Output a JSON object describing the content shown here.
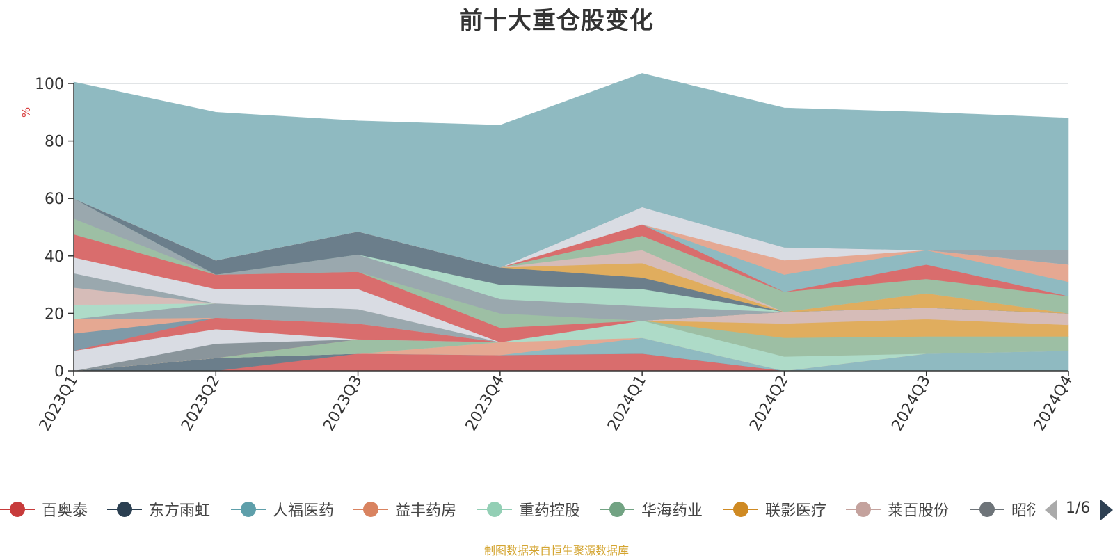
{
  "chart_data": {
    "type": "area",
    "title": "前十大重仓股变化",
    "ylabel": "%",
    "ylim": [
      0,
      100
    ],
    "y_ticks": [
      0,
      20,
      40,
      60,
      80,
      100
    ],
    "grid": true,
    "categories": [
      "2023Q1",
      "2023Q2",
      "2023Q3",
      "2023Q4",
      "2024Q1",
      "2024Q2",
      "2024Q3",
      "2024Q4"
    ],
    "series": [
      {
        "name": "百奥泰",
        "color": "#d96d6d",
        "values": [
          0,
          0,
          6,
          5.5,
          6,
          0,
          0,
          0
        ]
      },
      {
        "name": "东方雨虹",
        "color": "#6b7e8b",
        "values": [
          0,
          4.5,
          0,
          0,
          0,
          0,
          0,
          0
        ]
      },
      {
        "name": "人福医药",
        "color": "#8fbac1",
        "values": [
          0,
          0,
          0,
          0,
          5.5,
          0,
          6,
          7
        ]
      },
      {
        "name": "益丰药房",
        "color": "#e5a892",
        "values": [
          0,
          0,
          0,
          4.5,
          0,
          0,
          0,
          0
        ]
      },
      {
        "name": "重药控股",
        "color": "#aedbc8",
        "values": [
          0,
          0,
          0,
          0,
          6,
          5,
          0,
          0
        ]
      },
      {
        "name": "华海药业",
        "color": "#9dbfa4",
        "values": [
          0,
          0,
          5,
          0,
          0,
          6.5,
          6,
          5
        ]
      },
      {
        "name": "联影医疗",
        "color": "#e0ad5e",
        "values": [
          0,
          0,
          0,
          0,
          0,
          5,
          6,
          4
        ]
      },
      {
        "name": "莱百股份",
        "color": "#d6bcb8",
        "values": [
          0,
          0,
          0,
          0,
          0,
          4,
          4,
          4
        ]
      },
      {
        "name": "昭衍新药",
        "color": "#8a959b",
        "values": [
          0,
          5,
          0,
          0,
          0,
          0,
          0,
          0
        ]
      },
      {
        "name": "",
        "color": "#d9dce3",
        "values": [
          7,
          5,
          0,
          0,
          0,
          0,
          0,
          0
        ]
      },
      {
        "name": "",
        "color": "#d96d6d",
        "values": [
          0,
          4,
          5.5,
          0,
          0,
          0,
          0,
          0
        ]
      },
      {
        "name": "",
        "color": "#7f9aa8",
        "values": [
          6,
          0,
          0,
          0,
          0,
          0,
          0,
          0
        ]
      },
      {
        "name": "",
        "color": "#e5a892",
        "values": [
          5,
          0,
          0,
          0,
          0,
          0,
          0,
          0
        ]
      },
      {
        "name": "",
        "color": "#9aa8ae",
        "values": [
          0,
          5,
          5,
          0,
          0,
          0,
          0,
          0
        ]
      },
      {
        "name": "",
        "color": "#d6bcb8",
        "values": [
          0,
          0,
          0,
          0,
          0,
          0,
          0,
          0
        ]
      },
      {
        "name": "",
        "color": "#6b7e8b",
        "values": [
          0,
          0,
          0,
          0,
          0,
          0,
          0,
          0
        ]
      },
      {
        "name": "",
        "color": "#aedbc8",
        "values": [
          5,
          0,
          0,
          0,
          0,
          0,
          0,
          0
        ]
      },
      {
        "name": "",
        "color": "#d6bcb8",
        "values": [
          6,
          0,
          0,
          0,
          0,
          0,
          0,
          0
        ]
      },
      {
        "name": "",
        "color": "#9aa8ae",
        "values": [
          5,
          0,
          0,
          0,
          0,
          0,
          0,
          0
        ]
      },
      {
        "name": "",
        "color": "#d9dce3",
        "values": [
          5.5,
          5,
          7,
          0,
          0,
          0,
          0,
          0
        ]
      },
      {
        "name": "",
        "color": "#d96d6d",
        "values": [
          8,
          5,
          6,
          5,
          0,
          0,
          0,
          0
        ]
      },
      {
        "name": "",
        "color": "#9dbfa4",
        "values": [
          5.5,
          0,
          0,
          5,
          0,
          0,
          0,
          0
        ]
      },
      {
        "name": "",
        "color": "#9aa8ae",
        "values": [
          7,
          0,
          6,
          5,
          5,
          0,
          0,
          0
        ]
      },
      {
        "name": "",
        "color": "#aedbc8",
        "values": [
          0,
          0,
          0,
          5,
          6,
          0,
          0,
          0
        ]
      },
      {
        "name": "",
        "color": "#6b7e8b",
        "values": [
          0,
          5,
          8,
          6,
          4,
          0,
          0,
          0
        ]
      },
      {
        "name": "",
        "color": "#e0ad5e",
        "values": [
          0,
          0,
          0,
          0,
          5,
          0,
          5,
          0
        ]
      },
      {
        "name": "",
        "color": "#d6bcb8",
        "values": [
          0,
          0,
          0,
          0,
          4.5,
          0,
          0,
          0
        ]
      },
      {
        "name": "",
        "color": "#9dbfa4",
        "values": [
          0,
          0,
          0,
          0,
          5,
          7,
          5,
          6
        ]
      },
      {
        "name": "",
        "color": "#d96d6d",
        "values": [
          0,
          0,
          0,
          0,
          4,
          0,
          5,
          0
        ]
      },
      {
        "name": "",
        "color": "#8fbac1",
        "values": [
          0,
          0,
          0,
          0,
          0,
          6,
          5,
          5
        ]
      },
      {
        "name": "",
        "color": "#e5a892",
        "values": [
          0,
          0,
          0,
          0,
          0,
          5,
          0,
          6
        ]
      },
      {
        "name": "",
        "color": "#d9dce3",
        "values": [
          0,
          0,
          0,
          0,
          6,
          4.5,
          0,
          0
        ]
      },
      {
        "name": "",
        "color": "#9aa8ae",
        "values": [
          0,
          0,
          0,
          0,
          0,
          0,
          0,
          5
        ]
      },
      {
        "name": "",
        "color": "#8fbac1",
        "values": [
          40.5,
          51.5,
          38.5,
          49.5,
          46.5,
          48.5,
          48,
          46
        ]
      }
    ]
  },
  "legend": {
    "items": [
      {
        "label": "百奥泰",
        "color": "#c73b3b"
      },
      {
        "label": "东方雨虹",
        "color": "#2b3f51"
      },
      {
        "label": "人福医药",
        "color": "#5e9faa"
      },
      {
        "label": "益丰药房",
        "color": "#d98360"
      },
      {
        "label": "重药控股",
        "color": "#93cfb5"
      },
      {
        "label": "华海药业",
        "color": "#72a383"
      },
      {
        "label": "联影医疗",
        "color": "#cf8a23"
      },
      {
        "label": "莱百股份",
        "color": "#c4a29d"
      },
      {
        "label": "昭衍新药",
        "color": "#6e7479"
      }
    ],
    "page_indicator": "1/6"
  },
  "footnote": "制图数据来自恒生聚源数据库"
}
